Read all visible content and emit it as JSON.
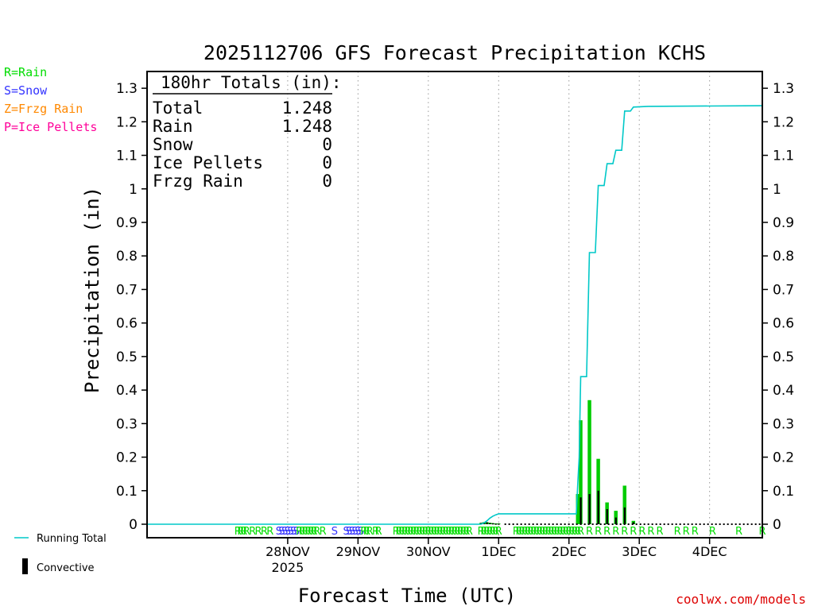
{
  "chart_data": {
    "type": "bar",
    "title": "2025112706 GFS Forecast Precipitation KCHS",
    "ylabel": "Precipitation (in)",
    "xlabel": "Forecast Time (UTC)",
    "ylim": [
      0,
      1.35
    ],
    "xlim_hours": [
      -30,
      180
    ],
    "y_ticks": [
      0,
      0.1,
      0.2,
      0.3,
      0.4,
      0.5,
      0.6,
      0.7,
      0.8,
      0.9,
      1,
      1.1,
      1.2,
      1.3
    ],
    "x_ticks": [
      {
        "hour": 18,
        "label": "28NOV",
        "sublabel": "2025"
      },
      {
        "hour": 42,
        "label": "29NOV",
        "sublabel": ""
      },
      {
        "hour": 66,
        "label": "30NOV",
        "sublabel": ""
      },
      {
        "hour": 90,
        "label": "1DEC",
        "sublabel": ""
      },
      {
        "hour": 114,
        "label": "2DEC",
        "sublabel": ""
      },
      {
        "hour": 138,
        "label": "3DEC",
        "sublabel": ""
      },
      {
        "hour": 162,
        "label": "4DEC",
        "sublabel": ""
      }
    ],
    "bars": [
      {
        "hour": 84,
        "total": 0.004,
        "convective": 0.004
      },
      {
        "hour": 85,
        "total": 0.006,
        "convective": 0.006
      },
      {
        "hour": 86,
        "total": 0.006,
        "convective": 0.006
      },
      {
        "hour": 87,
        "total": 0.004,
        "convective": 0.004
      },
      {
        "hour": 88,
        "total": 0.003,
        "convective": 0.003
      },
      {
        "hour": 89,
        "total": 0.002,
        "convective": 0.002
      },
      {
        "hour": 90,
        "total": 0.002,
        "convective": 0.002
      },
      {
        "hour": 117,
        "total": 0.09,
        "convective": 0.0
      },
      {
        "hour": 118,
        "total": 0.31,
        "convective": 0.08
      },
      {
        "hour": 121,
        "total": 0.37,
        "convective": 0.09
      },
      {
        "hour": 124,
        "total": 0.195,
        "convective": 0.1
      },
      {
        "hour": 127,
        "total": 0.065,
        "convective": 0.045
      },
      {
        "hour": 130,
        "total": 0.04,
        "convective": 0.02
      },
      {
        "hour": 133,
        "total": 0.115,
        "convective": 0.05
      },
      {
        "hour": 136,
        "total": 0.01,
        "convective": 0.006
      }
    ],
    "running_total": [
      [
        -30,
        0
      ],
      [
        84,
        0
      ],
      [
        85,
        0.004
      ],
      [
        86,
        0.01
      ],
      [
        87,
        0.018
      ],
      [
        88,
        0.024
      ],
      [
        89,
        0.028
      ],
      [
        90,
        0.031
      ],
      [
        116.5,
        0.031
      ],
      [
        117,
        0.12
      ],
      [
        117.5,
        0.2
      ],
      [
        118,
        0.44
      ],
      [
        120,
        0.44
      ],
      [
        121,
        0.81
      ],
      [
        123,
        0.81
      ],
      [
        124,
        1.01
      ],
      [
        126,
        1.01
      ],
      [
        127,
        1.075
      ],
      [
        129,
        1.075
      ],
      [
        130,
        1.115
      ],
      [
        132,
        1.115
      ],
      [
        133,
        1.232
      ],
      [
        135,
        1.232
      ],
      [
        136,
        1.244
      ],
      [
        141,
        1.246
      ],
      [
        180,
        1.248
      ]
    ],
    "precip_type_markers": [
      {
        "hour": 1,
        "type": "R"
      },
      {
        "hour": 2,
        "type": "R"
      },
      {
        "hour": 3,
        "type": "R"
      },
      {
        "hour": 4,
        "type": "R"
      },
      {
        "hour": 6,
        "type": "R"
      },
      {
        "hour": 8,
        "type": "R"
      },
      {
        "hour": 10,
        "type": "R"
      },
      {
        "hour": 12,
        "type": "R"
      },
      {
        "hour": 15,
        "type": "S"
      },
      {
        "hour": 16,
        "type": "S"
      },
      {
        "hour": 17,
        "type": "S"
      },
      {
        "hour": 18,
        "type": "S"
      },
      {
        "hour": 19,
        "type": "S"
      },
      {
        "hour": 20,
        "type": "S"
      },
      {
        "hour": 21,
        "type": "S"
      },
      {
        "hour": 22,
        "type": "R"
      },
      {
        "hour": 23,
        "type": "R"
      },
      {
        "hour": 24,
        "type": "R"
      },
      {
        "hour": 25,
        "type": "R"
      },
      {
        "hour": 26,
        "type": "R"
      },
      {
        "hour": 27,
        "type": "R"
      },
      {
        "hour": 28,
        "type": "R"
      },
      {
        "hour": 30,
        "type": "R"
      },
      {
        "hour": 34,
        "type": "S"
      },
      {
        "hour": 38,
        "type": "S"
      },
      {
        "hour": 39,
        "type": "S"
      },
      {
        "hour": 40,
        "type": "S"
      },
      {
        "hour": 41,
        "type": "S"
      },
      {
        "hour": 42,
        "type": "S"
      },
      {
        "hour": 43,
        "type": "S"
      },
      {
        "hour": 44,
        "type": "R"
      },
      {
        "hour": 45,
        "type": "R"
      },
      {
        "hour": 46,
        "type": "R"
      },
      {
        "hour": 48,
        "type": "R"
      },
      {
        "hour": 49,
        "type": "R"
      },
      {
        "hour": 55,
        "type": "R"
      },
      {
        "hour": 56,
        "type": "R"
      },
      {
        "hour": 57,
        "type": "R"
      },
      {
        "hour": 58,
        "type": "R"
      },
      {
        "hour": 59,
        "type": "R"
      },
      {
        "hour": 60,
        "type": "R"
      },
      {
        "hour": 61,
        "type": "R"
      },
      {
        "hour": 62,
        "type": "R"
      },
      {
        "hour": 63,
        "type": "R"
      },
      {
        "hour": 64,
        "type": "R"
      },
      {
        "hour": 65,
        "type": "R"
      },
      {
        "hour": 66,
        "type": "R"
      },
      {
        "hour": 67,
        "type": "R"
      },
      {
        "hour": 68,
        "type": "R"
      },
      {
        "hour": 69,
        "type": "R"
      },
      {
        "hour": 70,
        "type": "R"
      },
      {
        "hour": 71,
        "type": "R"
      },
      {
        "hour": 72,
        "type": "R"
      },
      {
        "hour": 73,
        "type": "R"
      },
      {
        "hour": 74,
        "type": "R"
      },
      {
        "hour": 75,
        "type": "R"
      },
      {
        "hour": 76,
        "type": "R"
      },
      {
        "hour": 77,
        "type": "R"
      },
      {
        "hour": 78,
        "type": "R"
      },
      {
        "hour": 79,
        "type": "R"
      },
      {
        "hour": 80,
        "type": "R"
      },
      {
        "hour": 84,
        "type": "R"
      },
      {
        "hour": 85,
        "type": "R"
      },
      {
        "hour": 86,
        "type": "R"
      },
      {
        "hour": 87,
        "type": "R"
      },
      {
        "hour": 88,
        "type": "R"
      },
      {
        "hour": 89,
        "type": "R"
      },
      {
        "hour": 90,
        "type": "R"
      },
      {
        "hour": 96,
        "type": "R"
      },
      {
        "hour": 97,
        "type": "R"
      },
      {
        "hour": 98,
        "type": "R"
      },
      {
        "hour": 99,
        "type": "R"
      },
      {
        "hour": 100,
        "type": "R"
      },
      {
        "hour": 101,
        "type": "R"
      },
      {
        "hour": 102,
        "type": "R"
      },
      {
        "hour": 103,
        "type": "R"
      },
      {
        "hour": 104,
        "type": "R"
      },
      {
        "hour": 105,
        "type": "R"
      },
      {
        "hour": 106,
        "type": "R"
      },
      {
        "hour": 107,
        "type": "R"
      },
      {
        "hour": 108,
        "type": "R"
      },
      {
        "hour": 109,
        "type": "R"
      },
      {
        "hour": 110,
        "type": "R"
      },
      {
        "hour": 111,
        "type": "R"
      },
      {
        "hour": 112,
        "type": "R"
      },
      {
        "hour": 113,
        "type": "R"
      },
      {
        "hour": 114,
        "type": "R"
      },
      {
        "hour": 115,
        "type": "R"
      },
      {
        "hour": 116,
        "type": "R"
      },
      {
        "hour": 117,
        "type": "R"
      },
      {
        "hour": 118,
        "type": "R"
      },
      {
        "hour": 121,
        "type": "R"
      },
      {
        "hour": 124,
        "type": "R"
      },
      {
        "hour": 127,
        "type": "R"
      },
      {
        "hour": 130,
        "type": "R"
      },
      {
        "hour": 133,
        "type": "R"
      },
      {
        "hour": 136,
        "type": "R"
      },
      {
        "hour": 139,
        "type": "R"
      },
      {
        "hour": 142,
        "type": "R"
      },
      {
        "hour": 145,
        "type": "R"
      },
      {
        "hour": 151,
        "type": "R"
      },
      {
        "hour": 154,
        "type": "R"
      },
      {
        "hour": 157,
        "type": "R"
      },
      {
        "hour": 163,
        "type": "R"
      },
      {
        "hour": 172,
        "type": "R"
      },
      {
        "hour": 180,
        "type": "R"
      }
    ]
  },
  "totals_box": {
    "header": "180hr Totals (in):",
    "rows": [
      {
        "label": "Total",
        "value": "1.248"
      },
      {
        "label": "Rain",
        "value": "1.248"
      },
      {
        "label": "Snow",
        "value": "0"
      },
      {
        "label": "Ice Pellets",
        "value": "0"
      },
      {
        "label": "Frzg Rain",
        "value": "0"
      }
    ]
  },
  "type_legend": [
    {
      "text": "R=Rain",
      "color": "#00dd00"
    },
    {
      "text": "S=Snow",
      "color": "#3333ff"
    },
    {
      "text": "Z=Frzg Rain",
      "color": "#ff8800"
    },
    {
      "text": "P=Ice Pellets",
      "color": "#ff0099"
    }
  ],
  "series_legend": {
    "running_total": "Running Total",
    "convective": "Convective"
  },
  "credit": "coolwx.com/models",
  "colors": {
    "running_total": "#00c8c8",
    "bar": "#00cc00",
    "convective": "#000000",
    "rain": "#00dd00",
    "snow": "#3333ff",
    "credit": "#dd0000"
  }
}
